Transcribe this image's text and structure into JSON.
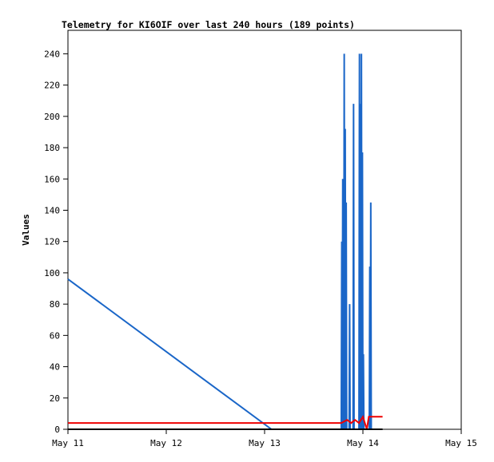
{
  "chart_data": {
    "type": "line",
    "title": "Telemetry for KI6OIF over last 240 hours (189 points)",
    "xlabel": "",
    "ylabel": "Values",
    "x_ticks": [
      "May 11",
      "May 12",
      "May 13",
      "May 14",
      "May 15"
    ],
    "xlim_days": [
      0,
      4
    ],
    "ylim": [
      0,
      255
    ],
    "y_ticks": [
      0,
      20,
      40,
      60,
      80,
      100,
      120,
      140,
      160,
      180,
      200,
      220,
      240
    ],
    "grid": false,
    "legend": "none",
    "colors": {
      "blue": "#1a66c8",
      "red": "#ee0000",
      "black": "#000000"
    },
    "series": [
      {
        "color": "blue",
        "points": [
          [
            0.0,
            96
          ],
          [
            2.07,
            0
          ],
          [
            2.78,
            0
          ],
          [
            2.785,
            120
          ],
          [
            2.79,
            0
          ],
          [
            2.795,
            160
          ],
          [
            2.8,
            88
          ],
          [
            2.805,
            0
          ],
          [
            2.81,
            240
          ],
          [
            2.815,
            0
          ],
          [
            2.82,
            192
          ],
          [
            2.825,
            0
          ],
          [
            2.83,
            145
          ],
          [
            2.835,
            0
          ],
          [
            2.86,
            0
          ],
          [
            2.865,
            80
          ],
          [
            2.87,
            0
          ],
          [
            2.9,
            0
          ],
          [
            2.905,
            208
          ],
          [
            2.91,
            0
          ],
          [
            2.96,
            0
          ],
          [
            2.965,
            240
          ],
          [
            2.97,
            0
          ],
          [
            2.975,
            208
          ],
          [
            2.98,
            0
          ],
          [
            2.985,
            240
          ],
          [
            2.99,
            0
          ],
          [
            2.995,
            177
          ],
          [
            3.0,
            0
          ],
          [
            3.005,
            48
          ],
          [
            3.01,
            0
          ],
          [
            3.06,
            0
          ],
          [
            3.065,
            0
          ],
          [
            3.07,
            104
          ],
          [
            3.075,
            0
          ],
          [
            3.08,
            145
          ],
          [
            3.085,
            0
          ]
        ]
      },
      {
        "color": "red",
        "points": [
          [
            0.0,
            4
          ],
          [
            2.78,
            4
          ],
          [
            2.84,
            6
          ],
          [
            2.88,
            4
          ],
          [
            2.92,
            6
          ],
          [
            2.96,
            4
          ],
          [
            3.0,
            8
          ],
          [
            3.02,
            4
          ],
          [
            3.04,
            0
          ],
          [
            3.06,
            8
          ],
          [
            3.2,
            8
          ]
        ]
      },
      {
        "color": "black",
        "points": [
          [
            0.0,
            0
          ],
          [
            3.2,
            0
          ]
        ]
      }
    ]
  }
}
